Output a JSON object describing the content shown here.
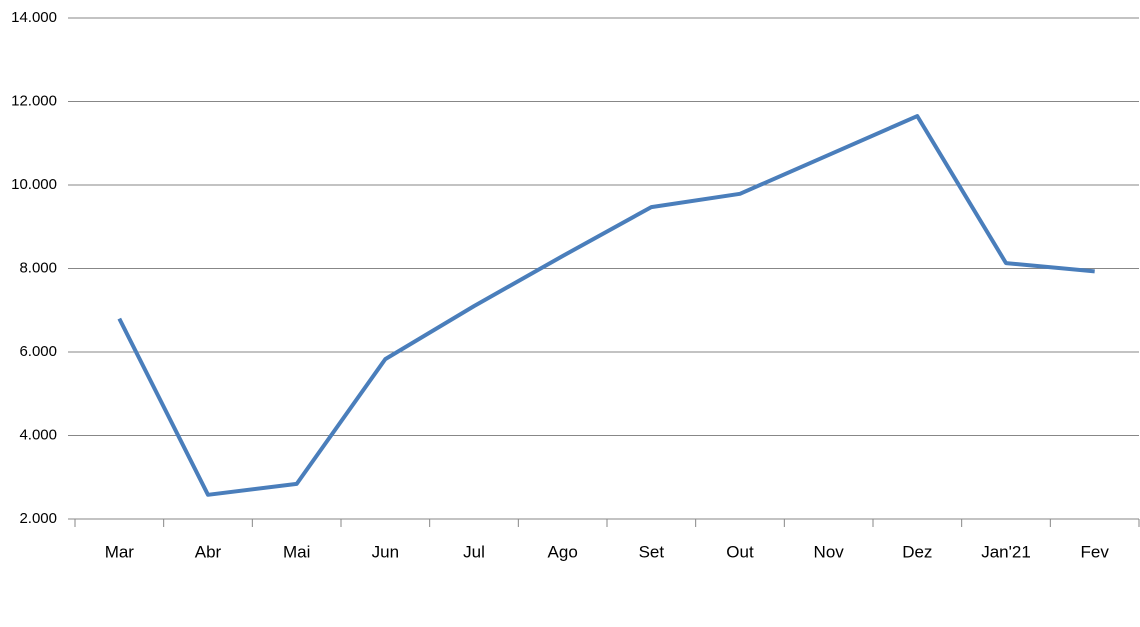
{
  "chart_data": {
    "type": "line",
    "categories": [
      "Mar",
      "Abr",
      "Mai",
      "Jun",
      "Jul",
      "Ago",
      "Set",
      "Out",
      "Nov",
      "Dez",
      "Jan'21",
      "Fev"
    ],
    "series": [
      {
        "color": "#4a7ebb",
        "values": [
          6800,
          2580,
          2840,
          5830,
          7100,
          8300,
          9470,
          9790,
          10720,
          11650,
          8130,
          7930
        ]
      }
    ],
    "ylim": [
      2000,
      14000
    ],
    "yticks": [
      {
        "value": 2000,
        "label": "2.000"
      },
      {
        "value": 4000,
        "label": "4.000"
      },
      {
        "value": 6000,
        "label": "6.000"
      },
      {
        "value": 8000,
        "label": "8.000"
      },
      {
        "value": 10000,
        "label": "10.000"
      },
      {
        "value": 12000,
        "label": "12.000"
      },
      {
        "value": 14000,
        "label": "14.000"
      }
    ],
    "grid": true
  }
}
